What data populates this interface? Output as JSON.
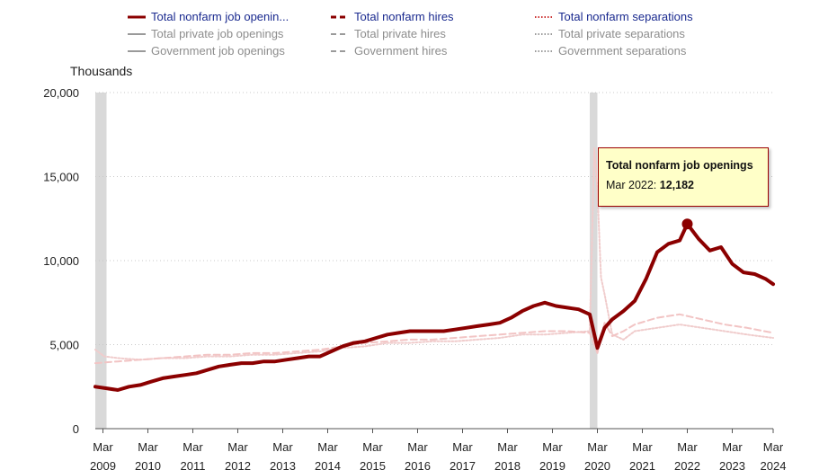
{
  "legend": [
    {
      "label": "Total nonfarm job openin...",
      "style": "solid",
      "color": "#8b0000",
      "active": true
    },
    {
      "label": "Total nonfarm hires",
      "style": "dashed",
      "color": "#8b0000",
      "active": true
    },
    {
      "label": "Total nonfarm separations",
      "style": "dotted",
      "color": "#cc3333",
      "active": true
    },
    {
      "label": "Total private job openings",
      "style": "solid",
      "color": "#9a9a9a",
      "active": false
    },
    {
      "label": "Total private hires",
      "style": "dashed",
      "color": "#9a9a9a",
      "active": false
    },
    {
      "label": "Total private separations",
      "style": "dotted",
      "color": "#9a9a9a",
      "active": false
    },
    {
      "label": "Government job openings",
      "style": "solid",
      "color": "#9a9a9a",
      "active": false
    },
    {
      "label": "Government hires",
      "style": "dashed",
      "color": "#9a9a9a",
      "active": false
    },
    {
      "label": "Government separations",
      "style": "dotted",
      "color": "#9a9a9a",
      "active": false
    }
  ],
  "units_label": "Thousands",
  "tooltip": {
    "title": "Total nonfarm job openings",
    "date": "Mar 2022:",
    "value": "12,182"
  },
  "colors": {
    "openings": "#8b0000",
    "hires": "#f2c4c4",
    "separations": "#f0cccc",
    "recession": "#d9d9d9",
    "grid": "#c8c8c8"
  },
  "chart_data": {
    "type": "line",
    "ylabel": "Thousands",
    "ylim": [
      0,
      20000
    ],
    "yticks": [
      0,
      5000,
      10000,
      15000,
      20000
    ],
    "ytick_labels": [
      "0",
      "5,000",
      "10,000",
      "15,000",
      "20,000"
    ],
    "xlim": [
      2009.0,
      2024.08
    ],
    "xticks": [
      {
        "month": "Mar",
        "year": "2009",
        "pos": 2009.17
      },
      {
        "month": "Mar",
        "year": "2010",
        "pos": 2010.17
      },
      {
        "month": "Mar",
        "year": "2011",
        "pos": 2011.17
      },
      {
        "month": "Mar",
        "year": "2012",
        "pos": 2012.17
      },
      {
        "month": "Mar",
        "year": "2013",
        "pos": 2013.17
      },
      {
        "month": "Mar",
        "year": "2014",
        "pos": 2014.17
      },
      {
        "month": "Mar",
        "year": "2015",
        "pos": 2015.17
      },
      {
        "month": "Mar",
        "year": "2016",
        "pos": 2016.17
      },
      {
        "month": "Mar",
        "year": "2017",
        "pos": 2017.17
      },
      {
        "month": "Mar",
        "year": "2018",
        "pos": 2018.17
      },
      {
        "month": "Mar",
        "year": "2019",
        "pos": 2019.17
      },
      {
        "month": "Mar",
        "year": "2020",
        "pos": 2020.17
      },
      {
        "month": "Mar",
        "year": "2021",
        "pos": 2021.17
      },
      {
        "month": "Mar",
        "year": "2022",
        "pos": 2022.17
      },
      {
        "month": "Mar",
        "year": "2023",
        "pos": 2023.17
      },
      {
        "month": "Mar",
        "year": "2024",
        "pos": 2024.17
      }
    ],
    "recessions": [
      [
        2009.0,
        2009.25
      ],
      [
        2020.0,
        2020.17
      ]
    ],
    "grid": true,
    "highlight": {
      "series": "Total nonfarm job openings",
      "x": 2022.17,
      "y": 12182
    },
    "series": [
      {
        "name": "Total nonfarm job openings",
        "style": "solid",
        "x": [
          2009.0,
          2009.25,
          2009.5,
          2009.75,
          2010.0,
          2010.25,
          2010.5,
          2010.75,
          2011.0,
          2011.25,
          2011.5,
          2011.75,
          2012.0,
          2012.25,
          2012.5,
          2012.75,
          2013.0,
          2013.25,
          2013.5,
          2013.75,
          2014.0,
          2014.25,
          2014.5,
          2014.75,
          2015.0,
          2015.25,
          2015.5,
          2015.75,
          2016.0,
          2016.25,
          2016.5,
          2016.75,
          2017.0,
          2017.25,
          2017.5,
          2017.75,
          2018.0,
          2018.25,
          2018.5,
          2018.75,
          2019.0,
          2019.25,
          2019.5,
          2019.75,
          2020.0,
          2020.17,
          2020.33,
          2020.5,
          2020.75,
          2021.0,
          2021.25,
          2021.5,
          2021.75,
          2022.0,
          2022.17,
          2022.42,
          2022.67,
          2022.92,
          2023.17,
          2023.42,
          2023.67,
          2023.92,
          2024.08
        ],
        "y": [
          2500,
          2400,
          2300,
          2500,
          2600,
          2800,
          3000,
          3100,
          3200,
          3300,
          3500,
          3700,
          3800,
          3900,
          3900,
          4000,
          4000,
          4100,
          4200,
          4300,
          4300,
          4600,
          4900,
          5100,
          5200,
          5400,
          5600,
          5700,
          5800,
          5800,
          5800,
          5800,
          5900,
          6000,
          6100,
          6200,
          6300,
          6600,
          7000,
          7300,
          7500,
          7300,
          7200,
          7100,
          6800,
          4800,
          6000,
          6500,
          7000,
          7600,
          8900,
          10500,
          11000,
          11200,
          12182,
          11300,
          10600,
          10800,
          9800,
          9300,
          9200,
          8900,
          8600
        ]
      },
      {
        "name": "Total nonfarm hires",
        "style": "dashed",
        "x": [
          2009.0,
          2009.5,
          2010.0,
          2010.5,
          2011.0,
          2011.5,
          2012.0,
          2012.5,
          2013.0,
          2013.5,
          2014.0,
          2014.5,
          2015.0,
          2015.5,
          2016.0,
          2016.5,
          2017.0,
          2017.5,
          2018.0,
          2018.5,
          2019.0,
          2019.5,
          2020.0,
          2020.17,
          2020.33,
          2020.5,
          2020.75,
          2021.0,
          2021.5,
          2022.0,
          2022.5,
          2023.0,
          2023.5,
          2024.08
        ],
        "y": [
          3900,
          4000,
          4100,
          4200,
          4300,
          4400,
          4400,
          4500,
          4500,
          4600,
          4700,
          4900,
          5100,
          5200,
          5300,
          5300,
          5400,
          5500,
          5600,
          5700,
          5800,
          5800,
          5700,
          4500,
          6300,
          5500,
          5800,
          6200,
          6600,
          6800,
          6500,
          6200,
          6000,
          5700
        ]
      },
      {
        "name": "Total nonfarm separations",
        "style": "dotted",
        "x": [
          2009.0,
          2009.2,
          2009.5,
          2010.0,
          2010.5,
          2011.0,
          2011.5,
          2012.0,
          2012.5,
          2013.0,
          2013.5,
          2014.0,
          2014.5,
          2015.0,
          2015.5,
          2016.0,
          2016.5,
          2017.0,
          2017.5,
          2018.0,
          2018.5,
          2019.0,
          2019.5,
          2020.0,
          2020.1,
          2020.17,
          2020.25,
          2020.33,
          2020.5,
          2020.75,
          2021.0,
          2021.5,
          2022.0,
          2022.5,
          2023.0,
          2023.5,
          2024.08
        ],
        "y": [
          4700,
          4300,
          4200,
          4100,
          4200,
          4200,
          4300,
          4300,
          4400,
          4400,
          4500,
          4600,
          4800,
          4900,
          5100,
          5100,
          5200,
          5200,
          5300,
          5400,
          5600,
          5600,
          5700,
          5800,
          16700,
          14200,
          9000,
          8000,
          5600,
          5300,
          5800,
          6000,
          6200,
          6000,
          5800,
          5600,
          5400
        ]
      }
    ]
  }
}
